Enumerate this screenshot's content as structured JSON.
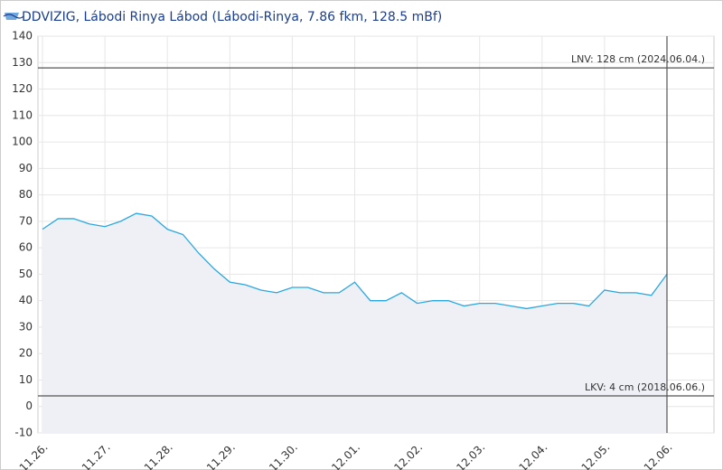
{
  "chart_data": {
    "type": "area",
    "title": "DDVIZIG, Lábodi Rinya Lábod (Lábodi-Rinya, 7.86 fkm, 128.5 mBf)",
    "categories": [
      "11.26.",
      null,
      null,
      null,
      "11.27.",
      null,
      null,
      null,
      "11.28.",
      null,
      null,
      null,
      "11.29.",
      null,
      null,
      null,
      "11.30.",
      null,
      null,
      null,
      "12.01.",
      null,
      null,
      null,
      "12.02.",
      null,
      null,
      null,
      "12.03.",
      null,
      null,
      null,
      "12.04.",
      null,
      null,
      null,
      "12.05.",
      null,
      null,
      null,
      "12.06."
    ],
    "values": [
      67,
      71,
      71,
      69,
      68,
      70,
      73,
      72,
      67,
      65,
      58,
      52,
      47,
      46,
      44,
      43,
      45,
      45,
      43,
      43,
      47,
      40,
      40,
      43,
      39,
      40,
      40,
      38,
      39,
      39,
      38,
      37,
      38,
      39,
      39,
      38,
      44,
      43,
      43,
      42,
      50
    ],
    "color": "#2aa7df",
    "ylim": [
      -10,
      140
    ],
    "yticks": [
      -10,
      0,
      10,
      20,
      30,
      40,
      50,
      60,
      70,
      80,
      90,
      100,
      110,
      120,
      130,
      140
    ],
    "grid": true,
    "reference_lines": [
      {
        "value": 128,
        "label": "LNV: 128 cm (2024.06.04.)"
      },
      {
        "value": 4,
        "label": "LKV: 4 cm (2018.06.06.)"
      }
    ]
  }
}
